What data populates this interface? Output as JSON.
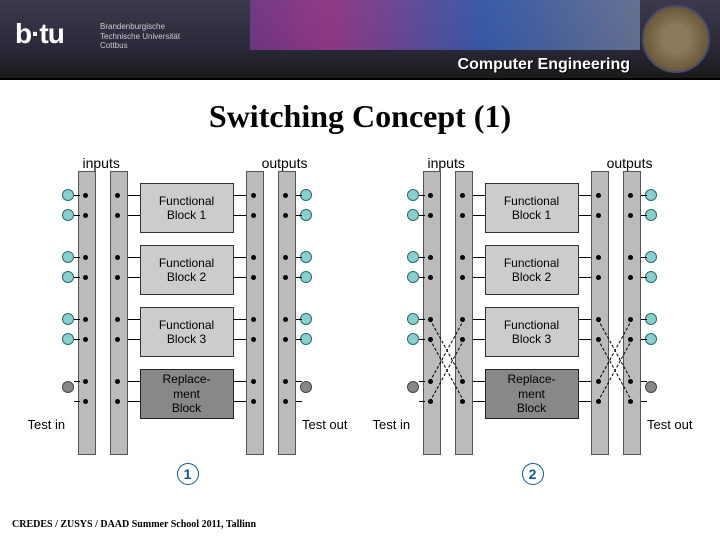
{
  "header": {
    "logo": "b·tu",
    "logo_sub": "Brandenburgische\nTechnische Universität\nCottbus",
    "title": "Computer Engineering"
  },
  "slide_title": "Switching Concept (1)",
  "labels": {
    "inputs": "inputs",
    "outputs": "outputs",
    "test_in": "Test in",
    "test_out": "Test out"
  },
  "blocks": [
    "Functional\nBlock 1",
    "Functional\nBlock 2",
    "Functional\nBlock 3",
    "Replace-\nment\nBlock"
  ],
  "diagram_badges": [
    "1",
    "2"
  ],
  "colors": {
    "bus": "#bbbbbb",
    "block_normal": "#cccccc",
    "block_replacement": "#888888",
    "io_dot": "#8acfd0",
    "test_dot": "#888888",
    "badge": "#0a5a8a"
  },
  "footer": "CREDES / ZUSYS / DAAD Summer School 2011, Tallinn"
}
